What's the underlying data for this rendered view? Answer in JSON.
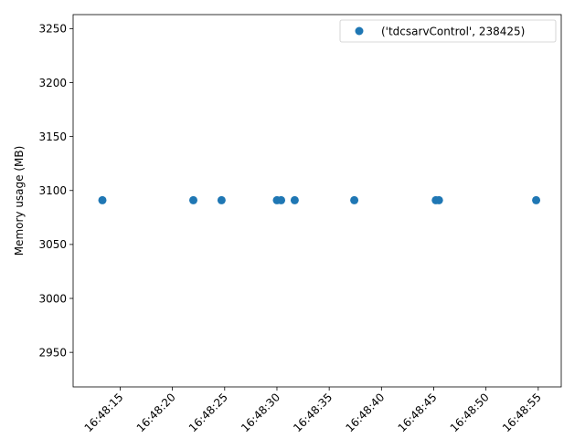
{
  "chart_data": {
    "type": "scatter",
    "title": "",
    "xlabel": "",
    "ylabel": "Memory usage (MB)",
    "x_type": "time",
    "xlim": [
      "16:48:10.500",
      "16:48:57.200"
    ],
    "ylim": [
      2918,
      3263
    ],
    "x_ticks": [
      "16:48:15",
      "16:48:20",
      "16:48:25",
      "16:48:30",
      "16:48:35",
      "16:48:40",
      "16:48:45",
      "16:48:50",
      "16:48:55"
    ],
    "y_ticks": [
      2950,
      3000,
      3050,
      3100,
      3150,
      3200,
      3250
    ],
    "grid": false,
    "legend_position": "upper right",
    "series": [
      {
        "name": "('tdcsarvControl', 238425)",
        "color": "#1f77b4",
        "points": [
          {
            "x": "16:48:13.3",
            "y": 3091
          },
          {
            "x": "16:48:22.0",
            "y": 3091
          },
          {
            "x": "16:48:24.7",
            "y": 3091
          },
          {
            "x": "16:48:30.0",
            "y": 3091
          },
          {
            "x": "16:48:30.4",
            "y": 3091
          },
          {
            "x": "16:48:31.7",
            "y": 3091
          },
          {
            "x": "16:48:37.4",
            "y": 3091
          },
          {
            "x": "16:48:45.2",
            "y": 3091
          },
          {
            "x": "16:48:45.5",
            "y": 3091
          },
          {
            "x": "16:48:54.8",
            "y": 3091
          }
        ]
      }
    ]
  }
}
